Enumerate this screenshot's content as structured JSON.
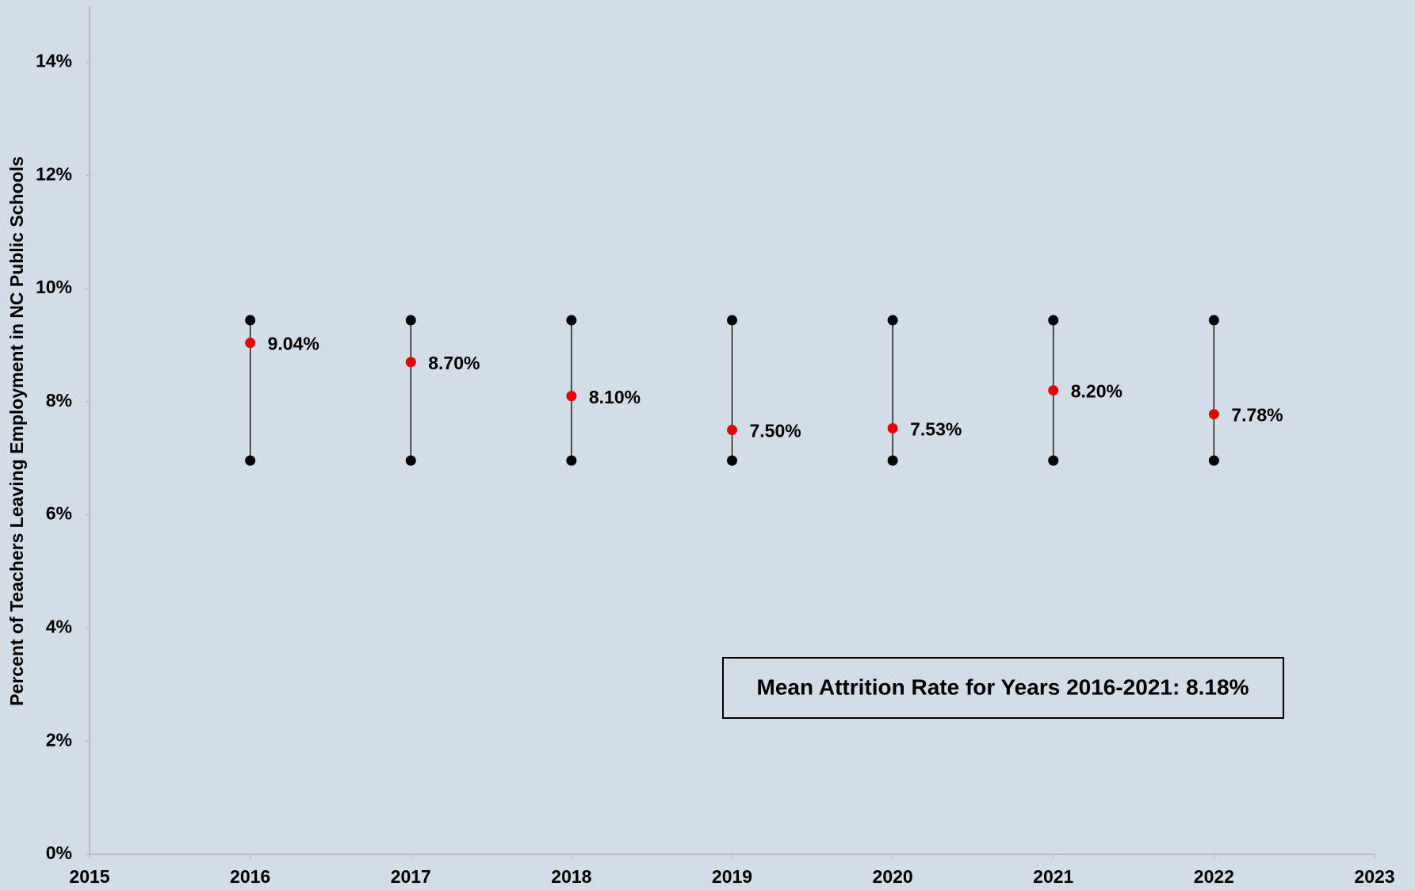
{
  "chart_data": {
    "type": "range-scatter",
    "y_label": "Percent of Teachers Leaving Employment in NC Public Schools",
    "annotation": "Mean Attrition Rate for Years 2016-2021:  8.18%",
    "x": [
      2016,
      2017,
      2018,
      2019,
      2020,
      2021,
      2022
    ],
    "values": [
      9.04,
      8.7,
      8.1,
      7.5,
      7.53,
      8.2,
      7.78
    ],
    "value_labels": [
      "9.04%",
      "8.70%",
      "8.10%",
      "7.50%",
      "7.53%",
      "8.20%",
      "7.78%"
    ],
    "high": [
      9.44,
      9.44,
      9.44,
      9.44,
      9.44,
      9.44,
      9.44
    ],
    "low": [
      6.96,
      6.96,
      6.96,
      6.96,
      6.96,
      6.96,
      6.96
    ],
    "color": "#e60000",
    "range_color": "#000000",
    "xlim": [
      2015,
      2023
    ],
    "xticks": [
      2015,
      2016,
      2017,
      2018,
      2019,
      2020,
      2021,
      2022,
      2023
    ],
    "ylim": [
      0,
      14
    ],
    "yticks": [
      {
        "value": 0,
        "label": "0%"
      },
      {
        "value": 2,
        "label": "2%"
      },
      {
        "value": 4,
        "label": "4%"
      },
      {
        "value": 6,
        "label": "6%"
      },
      {
        "value": 8,
        "label": "8%"
      },
      {
        "value": 10,
        "label": "10%"
      },
      {
        "value": 12,
        "label": "12%"
      },
      {
        "value": 14,
        "label": "14%"
      }
    ],
    "grid": false
  }
}
